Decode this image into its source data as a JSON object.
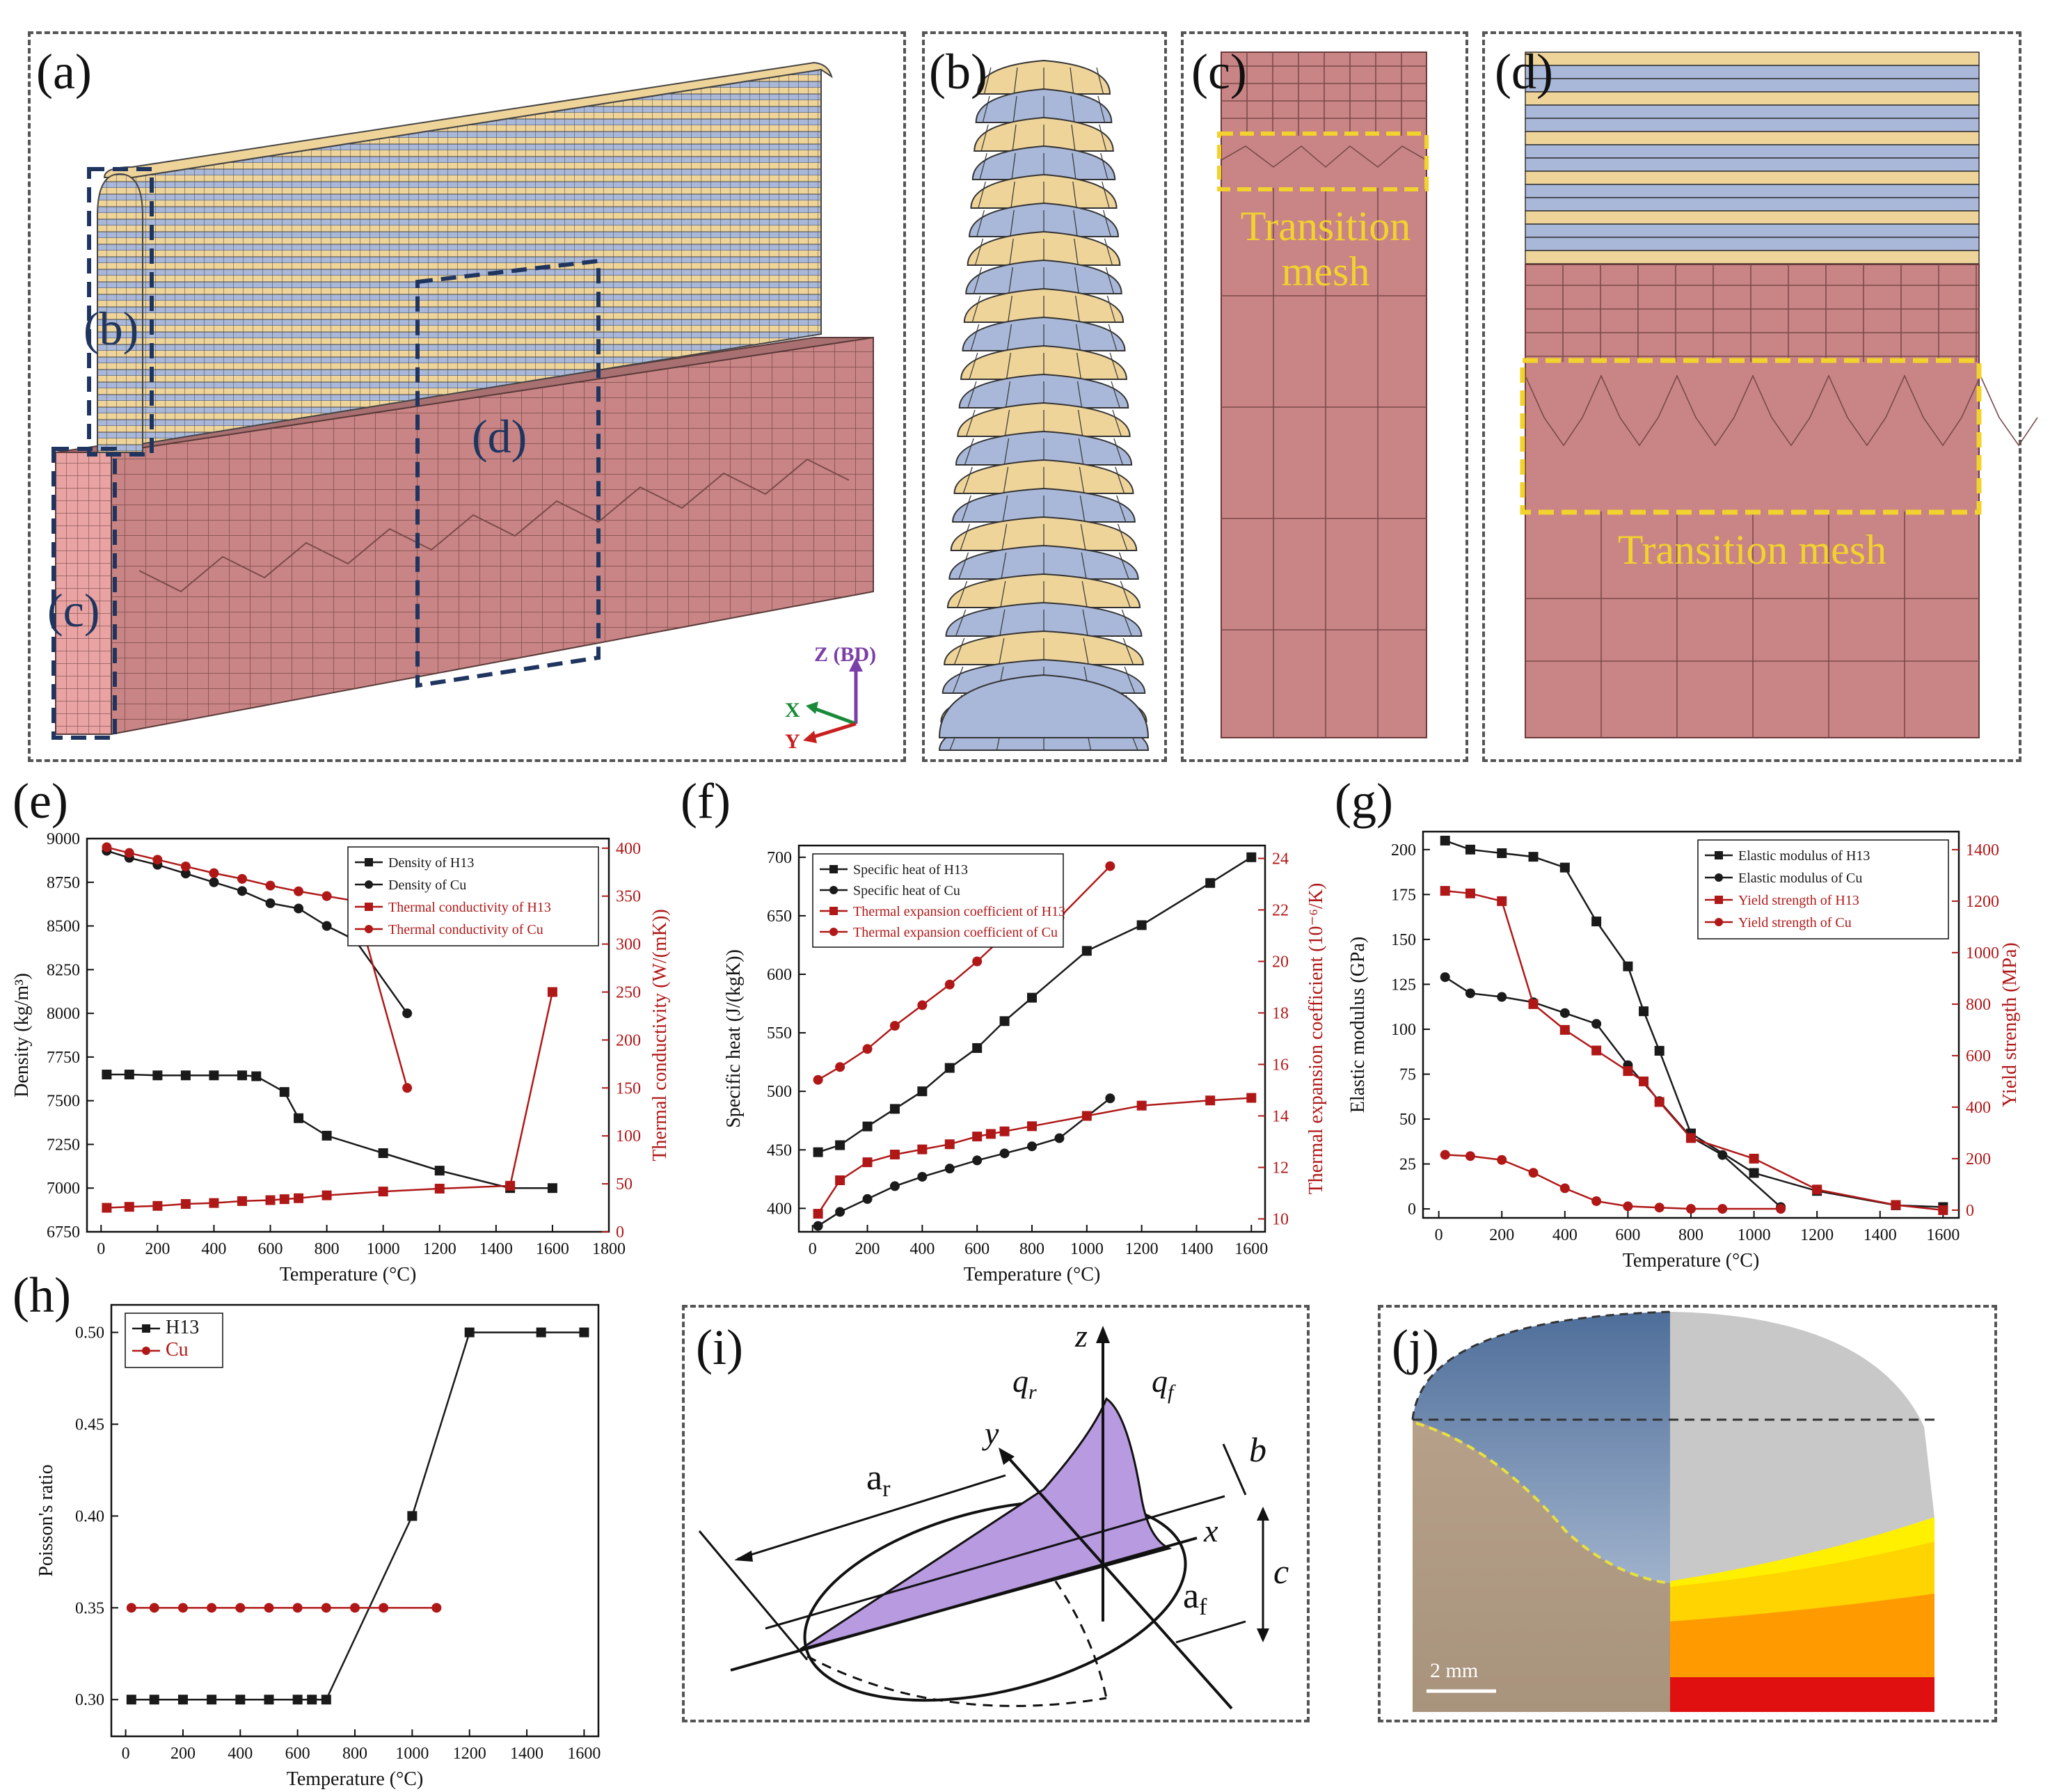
{
  "panels": {
    "a": {
      "label": "(a)",
      "callout_b": "(b)",
      "callout_c": "(c)",
      "callout_d": "(d)",
      "axis_z": "Z (BD)",
      "axis_x": "X",
      "axis_y": "Y"
    },
    "b": {
      "label": "(b)"
    },
    "c": {
      "label": "(c)",
      "transition_line1": "Transition",
      "transition_line2": "mesh"
    },
    "d": {
      "label": "(d)",
      "transition": "Transition mesh"
    },
    "e": {
      "label": "(e)"
    },
    "f": {
      "label": "(f)"
    },
    "g": {
      "label": "(g)"
    },
    "h": {
      "label": "(h)"
    },
    "i": {
      "label": "(i)",
      "z": "z",
      "y": "y",
      "x": "x",
      "qr": "q",
      "qr_sub": "r",
      "qf": "q",
      "qf_sub": "f",
      "ar": "a",
      "ar_sub": "r",
      "af": "a",
      "af_sub": "f",
      "b": "b",
      "c": "c"
    },
    "j": {
      "label": "(j)",
      "scale": "2 mm"
    }
  },
  "colors": {
    "mesh_red": "#c98585",
    "mesh_blue": "#a9b8d9",
    "mesh_yellow": "#efd49a",
    "transition": "#f2d22c",
    "callout": "#1f3560",
    "h13": "#1a1a1a",
    "cu": "#b01818",
    "purple": "#b79ae0"
  },
  "chart_data": [
    {
      "id": "e",
      "type": "line",
      "xlabel": "Temperature (°C)",
      "ylabel": "Density (kg/m³)",
      "y2label": "Thermal conductivity (W/(mK))",
      "xlim": [
        -50,
        1800
      ],
      "ylim": [
        6750,
        9000
      ],
      "y2lim": [
        0,
        410
      ],
      "xticks": [
        0,
        200,
        400,
        600,
        800,
        1000,
        1200,
        1400,
        1600,
        1800
      ],
      "yticks": [
        6750,
        7000,
        7250,
        7500,
        7750,
        8000,
        8250,
        8500,
        8750,
        9000
      ],
      "y2ticks": [
        0,
        50,
        100,
        150,
        200,
        250,
        300,
        350,
        400
      ],
      "series": [
        {
          "name": "Density of H13",
          "axis": "y",
          "marker": "square",
          "color": "#1a1a1a",
          "x": [
            20,
            100,
            200,
            300,
            400,
            500,
            550,
            650,
            700,
            800,
            1000,
            1200,
            1450,
            1600
          ],
          "y": [
            7650,
            7650,
            7645,
            7645,
            7645,
            7645,
            7640,
            7550,
            7400,
            7300,
            7200,
            7100,
            7000,
            7000
          ]
        },
        {
          "name": "Density of Cu",
          "axis": "y",
          "marker": "circle",
          "color": "#1a1a1a",
          "x": [
            20,
            100,
            200,
            300,
            400,
            500,
            600,
            700,
            800,
            900,
            1085
          ],
          "y": [
            8930,
            8890,
            8850,
            8800,
            8750,
            8700,
            8630,
            8600,
            8500,
            8420,
            8000
          ]
        },
        {
          "name": "Thermal conductivity of H13",
          "axis": "y2",
          "marker": "square",
          "color": "#b01818",
          "x": [
            20,
            100,
            200,
            300,
            400,
            500,
            600,
            650,
            700,
            800,
            1000,
            1200,
            1450,
            1600
          ],
          "y": [
            25,
            26,
            27,
            29,
            30,
            32,
            33,
            34,
            35,
            38,
            42,
            45,
            48,
            250
          ]
        },
        {
          "name": "Thermal conductivity of Cu",
          "axis": "y2",
          "marker": "circle",
          "color": "#b01818",
          "x": [
            20,
            100,
            200,
            300,
            400,
            500,
            600,
            700,
            800,
            900,
            1085
          ],
          "y": [
            401,
            395,
            388,
            381,
            374,
            368,
            361,
            355,
            350,
            345,
            150
          ]
        }
      ],
      "legend": "top-right"
    },
    {
      "id": "f",
      "type": "line",
      "xlabel": "Temperature (°C)",
      "ylabel": "Specific heat (J/(kgK))",
      "y2label": "Thermal expansion coefficient (10⁻⁶/K)",
      "xlim": [
        -50,
        1650
      ],
      "ylim": [
        380,
        710
      ],
      "y2lim": [
        9.5,
        24.5
      ],
      "xticks": [
        0,
        200,
        400,
        600,
        800,
        1000,
        1200,
        1400,
        1600
      ],
      "yticks": [
        400,
        450,
        500,
        550,
        600,
        650,
        700
      ],
      "y2ticks": [
        10,
        12,
        14,
        16,
        18,
        20,
        22,
        24
      ],
      "series": [
        {
          "name": "Specific heat of H13",
          "axis": "y",
          "marker": "square",
          "color": "#1a1a1a",
          "x": [
            20,
            100,
            200,
            300,
            400,
            500,
            600,
            700,
            800,
            1000,
            1200,
            1450,
            1600
          ],
          "y": [
            448,
            454,
            470,
            485,
            500,
            520,
            537,
            560,
            580,
            620,
            642,
            678,
            700
          ]
        },
        {
          "name": "Specific heat of Cu",
          "axis": "y",
          "marker": "circle",
          "color": "#1a1a1a",
          "x": [
            20,
            100,
            200,
            300,
            400,
            500,
            600,
            700,
            800,
            900,
            1085
          ],
          "y": [
            385,
            397,
            408,
            419,
            427,
            434,
            441,
            447,
            453,
            460,
            494
          ]
        },
        {
          "name": "Thermal expansion coefficient of H13",
          "axis": "y2",
          "marker": "square",
          "color": "#b01818",
          "x": [
            20,
            100,
            200,
            300,
            400,
            500,
            600,
            650,
            700,
            800,
            1000,
            1200,
            1450,
            1600
          ],
          "y": [
            10.2,
            11.5,
            12.2,
            12.5,
            12.7,
            12.9,
            13.2,
            13.3,
            13.4,
            13.6,
            14.0,
            14.4,
            14.6,
            14.7
          ]
        },
        {
          "name": "Thermal expansion coefficient of Cu",
          "axis": "y2",
          "marker": "circle",
          "color": "#b01818",
          "x": [
            20,
            100,
            200,
            300,
            400,
            500,
            600,
            700,
            800,
            900,
            1085
          ],
          "y": [
            15.4,
            15.9,
            16.6,
            17.5,
            18.3,
            19.1,
            20.0,
            21.0,
            21.5,
            21.7,
            23.7
          ]
        }
      ],
      "legend": "top-left"
    },
    {
      "id": "g",
      "type": "line",
      "xlabel": "Temperature (°C)",
      "ylabel": "Elastic modulus (GPa)",
      "y2label": "Yield strength (MPa)",
      "xlim": [
        -50,
        1650
      ],
      "ylim": [
        -5,
        210
      ],
      "y2lim": [
        -30,
        1470
      ],
      "xticks": [
        0,
        200,
        400,
        600,
        800,
        1000,
        1200,
        1400,
        1600
      ],
      "yticks": [
        0,
        25,
        50,
        75,
        100,
        125,
        150,
        175,
        200
      ],
      "y2ticks": [
        0,
        200,
        400,
        600,
        800,
        1000,
        1200,
        1400
      ],
      "series": [
        {
          "name": "Elastic modulus of H13",
          "axis": "y",
          "marker": "square",
          "color": "#1a1a1a",
          "x": [
            20,
            100,
            200,
            300,
            400,
            500,
            600,
            650,
            700,
            800,
            1000,
            1200,
            1450,
            1600
          ],
          "y": [
            205,
            200,
            198,
            196,
            190,
            160,
            135,
            110,
            88,
            42,
            20,
            10,
            2,
            1
          ]
        },
        {
          "name": "Elastic modulus of Cu",
          "axis": "y",
          "marker": "circle",
          "color": "#1a1a1a",
          "x": [
            20,
            100,
            200,
            300,
            400,
            500,
            600,
            700,
            800,
            900,
            1085
          ],
          "y": [
            129,
            120,
            118,
            115,
            109,
            103,
            80,
            60,
            40,
            30,
            1
          ]
        },
        {
          "name": "Yield strength of H13",
          "axis": "y2",
          "marker": "square",
          "color": "#b01818",
          "x": [
            20,
            100,
            200,
            300,
            400,
            500,
            600,
            650,
            700,
            800,
            1000,
            1200,
            1450,
            1600
          ],
          "y": [
            1240,
            1230,
            1200,
            800,
            700,
            620,
            540,
            500,
            420,
            280,
            200,
            80,
            20,
            0
          ]
        },
        {
          "name": "Yield strength of Cu",
          "axis": "y2",
          "marker": "circle",
          "color": "#b01818",
          "x": [
            20,
            100,
            200,
            300,
            400,
            500,
            600,
            700,
            800,
            900,
            1085
          ],
          "y": [
            215,
            210,
            195,
            145,
            85,
            35,
            15,
            10,
            5,
            5,
            5
          ]
        }
      ],
      "legend": "top-right"
    },
    {
      "id": "h",
      "type": "line",
      "xlabel": "Temperature (°C)",
      "ylabel": "Poisson's ratio",
      "xlim": [
        -50,
        1650
      ],
      "ylim": [
        0.28,
        0.515
      ],
      "xticks": [
        0,
        200,
        400,
        600,
        800,
        1000,
        1200,
        1400,
        1600
      ],
      "yticks": [
        0.3,
        0.35,
        0.4,
        0.45,
        0.5
      ],
      "ytick_labels": [
        "0.30",
        "0.35",
        "0.40",
        "0.45",
        "0.50"
      ],
      "series": [
        {
          "name": "H13",
          "marker": "square",
          "color": "#1a1a1a",
          "x": [
            20,
            100,
            200,
            300,
            400,
            500,
            600,
            650,
            700,
            1000,
            1200,
            1450,
            1600
          ],
          "y": [
            0.3,
            0.3,
            0.3,
            0.3,
            0.3,
            0.3,
            0.3,
            0.3,
            0.3,
            0.4,
            0.5,
            0.5,
            0.5
          ]
        },
        {
          "name": "Cu",
          "marker": "circle",
          "color": "#b01818",
          "x": [
            20,
            100,
            200,
            300,
            400,
            500,
            600,
            700,
            800,
            900,
            1085
          ],
          "y": [
            0.35,
            0.35,
            0.35,
            0.35,
            0.35,
            0.35,
            0.35,
            0.35,
            0.35,
            0.35,
            0.35
          ]
        }
      ],
      "legend": "top-left"
    }
  ]
}
